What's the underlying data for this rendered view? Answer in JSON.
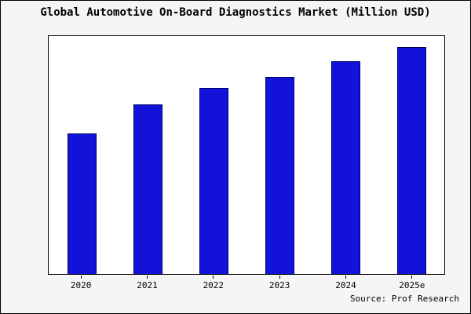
{
  "source": "Source: Prof Research",
  "colors": {
    "bar_fill": "#1212d8",
    "bar_edge": "#000066",
    "frame": "#000000",
    "figure_background": "#f5f5f5",
    "plot_background": "#ffffff"
  },
  "chart_data": {
    "type": "bar",
    "title": "Global Automotive On-Board Diagnostics Market (Million USD)",
    "categories": [
      "2020",
      "2021",
      "2022",
      "2023",
      "2024",
      "2025e"
    ],
    "values": [
      62,
      75,
      82,
      87,
      94,
      100
    ],
    "xlabel": "",
    "ylabel": "",
    "ylim": [
      0,
      105
    ],
    "grid": false,
    "legend": false,
    "notes": "No y-axis tick labels visible; values are relative estimates read from bar heights."
  }
}
